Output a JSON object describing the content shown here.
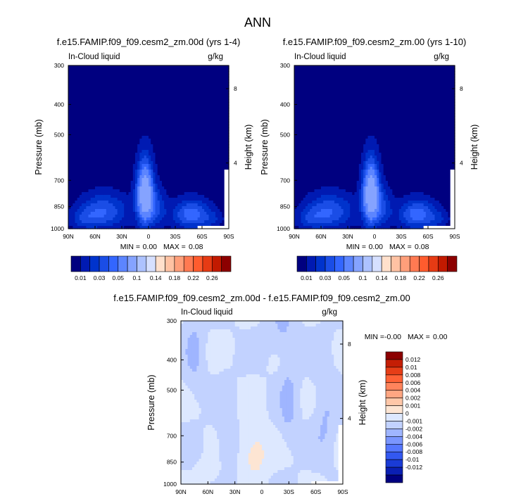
{
  "figure": {
    "title": "ANN"
  },
  "colors": {
    "frame": "#000000",
    "missing": "#ffffff",
    "abs_fill": [
      "#000080",
      "#001ab2",
      "#0033cc",
      "#1a4de6",
      "#3366ff",
      "#5c85ff",
      "#85a3ff",
      "#adc2ff",
      "#d6e0ff",
      "#ffe0cc",
      "#ffc2a3",
      "#ff9f7a",
      "#ff7a52",
      "#ff5c2e",
      "#e63b14",
      "#c21a00",
      "#8c0000"
    ],
    "diff_fill": [
      "#000080",
      "#0a1fb3",
      "#1a3bd6",
      "#3358f0",
      "#5577ff",
      "#7a96ff",
      "#9fb5ff",
      "#c2d2ff",
      "#dde8ff",
      "#fde5d3",
      "#ffc7a8",
      "#ffa682",
      "#ff845c",
      "#ff6236",
      "#e63e17",
      "#c41e05",
      "#8c0000"
    ]
  },
  "chart_data": [
    {
      "type": "heatmap",
      "title": "f.e15.FAMIP.f09_f09.cesm2_zm.00d (yrs 1-4)",
      "left_label": "In-Cloud liquid",
      "right_label": "g/kg",
      "ylabel": "Pressure (mb)",
      "y2label": "Height (km)",
      "xticks": [
        "90N",
        "60N",
        "30N",
        "0",
        "30S",
        "60S",
        "90S"
      ],
      "yticks": [
        "300",
        "400",
        "500",
        "700",
        "850",
        "1000"
      ],
      "y2ticks": [
        "8",
        "4"
      ],
      "xlim": [
        -90,
        90
      ],
      "ylim": [
        1000,
        300
      ],
      "stats": {
        "min_label": "MIN =",
        "min": "0.00",
        "max_label": "MAX =",
        "max": "0.08"
      },
      "colorbar": {
        "orientation": "horizontal",
        "tick_labels": [
          "0.01",
          "0.03",
          "0.05",
          "0.1",
          "0.14",
          "0.18",
          "0.22",
          "0.26"
        ]
      }
    },
    {
      "type": "heatmap",
      "title": "f.e15.FAMIP.f09_f09.cesm2_zm.00 (yrs 1-10)",
      "left_label": "In-Cloud liquid",
      "right_label": "g/kg",
      "ylabel": "Pressure (mb)",
      "y2label": "Height (km)",
      "xticks": [
        "90N",
        "60N",
        "30N",
        "0",
        "30S",
        "60S",
        "90S"
      ],
      "yticks": [
        "300",
        "400",
        "500",
        "700",
        "850",
        "1000"
      ],
      "y2ticks": [
        "8",
        "4"
      ],
      "xlim": [
        -90,
        90
      ],
      "ylim": [
        1000,
        300
      ],
      "stats": {
        "min_label": "MIN =",
        "min": "0.00",
        "max_label": "MAX =",
        "max": "0.08"
      },
      "colorbar": {
        "orientation": "horizontal",
        "tick_labels": [
          "0.01",
          "0.03",
          "0.05",
          "0.1",
          "0.14",
          "0.18",
          "0.22",
          "0.26"
        ]
      }
    },
    {
      "type": "heatmap",
      "title": "f.e15.FAMIP.f09_f09.cesm2_zm.00d - f.e15.FAMIP.f09_f09.cesm2_zm.00",
      "left_label": "In-Cloud liquid",
      "right_label": "g/kg",
      "ylabel": "Pressure (mb)",
      "y2label": "Height (km)",
      "xticks": [
        "90N",
        "60N",
        "30N",
        "0",
        "30S",
        "60S",
        "90S"
      ],
      "yticks": [
        "300",
        "400",
        "500",
        "700",
        "850",
        "1000"
      ],
      "y2ticks": [
        "8",
        "4"
      ],
      "xlim": [
        -90,
        90
      ],
      "ylim": [
        1000,
        300
      ],
      "stats": {
        "min_label": "MIN =",
        "min": "-0.00",
        "max_label": "MAX =",
        "max": "0.00"
      },
      "colorbar": {
        "orientation": "vertical",
        "tick_labels": [
          "0.012",
          "0.01",
          "0.008",
          "0.006",
          "0.004",
          "0.002",
          "0.001",
          "0",
          "-0.001",
          "-0.002",
          "-0.004",
          "-0.006",
          "-0.008",
          "-0.01",
          "-0.012"
        ]
      }
    }
  ]
}
